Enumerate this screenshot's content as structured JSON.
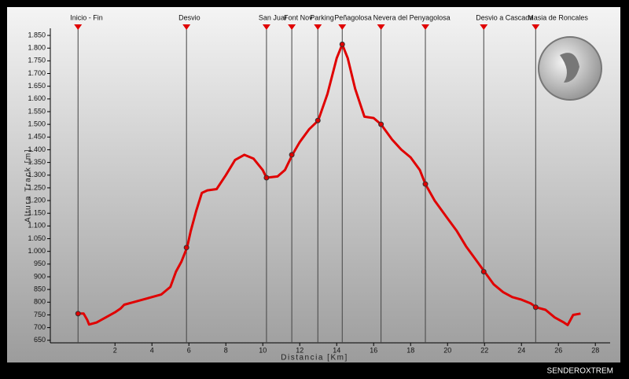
{
  "chart_data": {
    "type": "line",
    "xlabel": "Distancia [Km]",
    "ylabel": "Altura Track [m]",
    "watermark": "SENDEROXTREM",
    "color": "#e00000",
    "xlim": [
      -1.5,
      28.8
    ],
    "ylim": [
      640,
      1878
    ],
    "xticks": [
      2,
      4,
      6,
      8,
      10,
      12,
      14,
      16,
      18,
      20,
      22,
      24,
      26,
      28
    ],
    "yticks": [
      650,
      700,
      750,
      800,
      850,
      900,
      950,
      {
        "value": 1000,
        "label": "1.000"
      },
      {
        "value": 1050,
        "label": "1.050"
      },
      {
        "value": 1100,
        "label": "1.100"
      },
      {
        "value": 1150,
        "label": "1.150"
      },
      {
        "value": 1200,
        "label": "1.200"
      },
      {
        "value": 1250,
        "label": "1.250"
      },
      {
        "value": 1300,
        "label": "1.300"
      },
      {
        "value": 1350,
        "label": "1.350"
      },
      {
        "value": 1400,
        "label": "1.400"
      },
      {
        "value": 1450,
        "label": "1.450"
      },
      {
        "value": 1500,
        "label": "1.500"
      },
      {
        "value": 1550,
        "label": "1.550"
      },
      {
        "value": 1600,
        "label": "1.600"
      },
      {
        "value": 1650,
        "label": "1.650"
      },
      {
        "value": 1700,
        "label": "1.700"
      },
      {
        "value": 1750,
        "label": "1.750"
      },
      {
        "value": 1800,
        "label": "1.800"
      },
      {
        "value": 1850,
        "label": "1.850"
      }
    ],
    "x": [
      0,
      0.3,
      0.5,
      0.6,
      1,
      1.5,
      2,
      2.3,
      2.5,
      3,
      3.5,
      4,
      4.5,
      5,
      5.3,
      5.6,
      5.9,
      6.1,
      6.4,
      6.7,
      7,
      7.5,
      8,
      8.5,
      9,
      9.5,
      10,
      10.2,
      10.8,
      11.2,
      11.6,
      12,
      12.5,
      13,
      13.5,
      14,
      14.3,
      14.6,
      15,
      15.5,
      16,
      16.4,
      17,
      17.5,
      18,
      18.5,
      18.8,
      19.3,
      20,
      20.5,
      21,
      21.5,
      22,
      22.5,
      23,
      23.5,
      24,
      24.5,
      24.8,
      25.3,
      25.8,
      26.3,
      26.5,
      26.8,
      27.2
    ],
    "values": [
      755,
      755,
      730,
      712,
      720,
      740,
      760,
      775,
      790,
      800,
      810,
      820,
      830,
      860,
      920,
      960,
      1015,
      1080,
      1160,
      1230,
      1240,
      1245,
      1300,
      1360,
      1380,
      1365,
      1320,
      1290,
      1295,
      1320,
      1380,
      1430,
      1480,
      1515,
      1620,
      1760,
      1815,
      1760,
      1640,
      1530,
      1525,
      1500,
      1440,
      1400,
      1370,
      1320,
      1265,
      1200,
      1130,
      1080,
      1020,
      970,
      920,
      870,
      840,
      820,
      810,
      795,
      780,
      770,
      740,
      720,
      710,
      750,
      755
    ],
    "waypoints": {
      "labels": [
        "Inicio - Fin",
        "Desvio",
        "San Juar",
        "Font Nov",
        "Parking",
        "Peñagolosa",
        "Nevera del Penyagolosa",
        null,
        "Desvio a Cascada",
        "Masia de Roncales"
      ],
      "x": [
        0,
        5.87,
        10.2,
        11.57,
        12.98,
        14.3,
        16.4,
        18.8,
        21.96,
        24.77
      ],
      "values": [
        755,
        1015,
        1290,
        1380,
        1515,
        1815,
        1500,
        1265,
        920,
        780
      ]
    }
  }
}
